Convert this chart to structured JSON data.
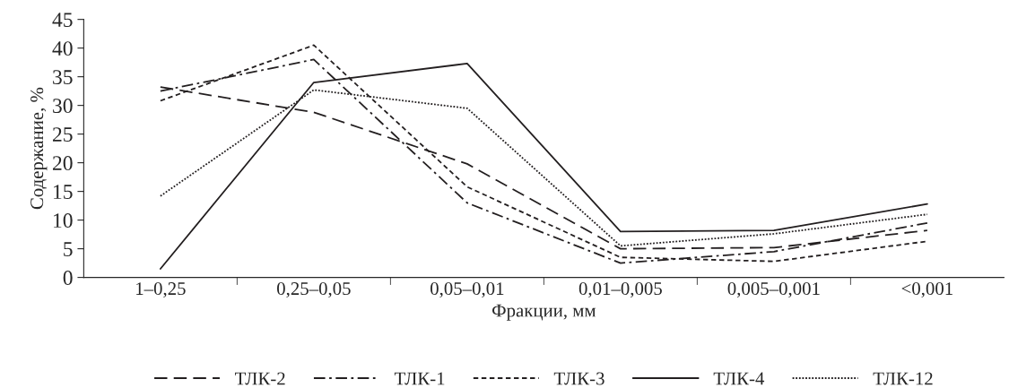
{
  "chart_data": {
    "type": "line",
    "xlabel": "Фракции, мм",
    "ylabel": "Содержание, %",
    "categories": [
      "1–0,25",
      "0,25–0,05",
      "0,05–0,01",
      "0,01–0,005",
      "0,005–0,001",
      "<0,001"
    ],
    "ylim": [
      0,
      45
    ],
    "yticks": [
      0,
      5,
      10,
      15,
      20,
      25,
      30,
      35,
      40,
      45
    ],
    "grid": false,
    "legend": "bottom",
    "marker": "none",
    "series": [
      {
        "name": "ТЛК-2",
        "color": "#231f20",
        "line_style": "longdash",
        "values": [
          33.2,
          28.8,
          19.8,
          5.0,
          5.2,
          8.2
        ]
      },
      {
        "name": "ТЛК-1",
        "color": "#231f20",
        "line_style": "dashdot",
        "values": [
          32.5,
          38.0,
          13.0,
          2.5,
          4.5,
          9.5
        ]
      },
      {
        "name": "ТЛК-3",
        "color": "#231f20",
        "line_style": "dashed",
        "values": [
          30.8,
          40.5,
          15.8,
          3.5,
          2.8,
          6.3
        ]
      },
      {
        "name": "ТЛК-4",
        "color": "#231f20",
        "line_style": "solid",
        "values": [
          1.5,
          34.0,
          37.3,
          8.0,
          8.2,
          12.8
        ]
      },
      {
        "name": "ТЛК-12",
        "color": "#231f20",
        "line_style": "dotted",
        "values": [
          14.2,
          32.7,
          29.5,
          5.5,
          7.6,
          11.0
        ]
      }
    ]
  }
}
